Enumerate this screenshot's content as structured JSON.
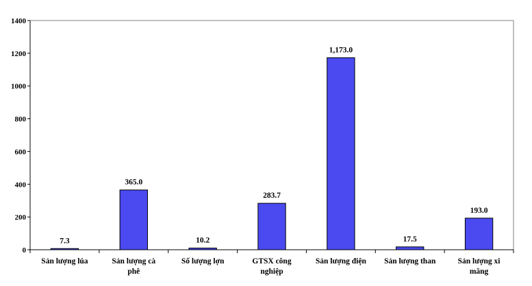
{
  "chart_data": {
    "type": "bar",
    "categories": [
      [
        "Sản lượng lúa"
      ],
      [
        "Sản lượng cà",
        "phê"
      ],
      [
        "Số lượng lợn"
      ],
      [
        "GTSX  công",
        "nghiệp"
      ],
      [
        "Sản lượng điện"
      ],
      [
        "Sản lượng than"
      ],
      [
        "Sản lượng xi",
        "măng"
      ]
    ],
    "values": [
      7.3,
      365.0,
      10.2,
      283.7,
      1173.0,
      17.5,
      193.0
    ],
    "data_labels": [
      "7.3",
      "365.0",
      "10.2",
      "283.7",
      "1,173.0",
      "17.5",
      "193.0"
    ],
    "ylim": [
      0,
      1400
    ],
    "yticks": [
      0,
      200,
      400,
      600,
      800,
      1000,
      1200,
      1400
    ],
    "bar_color": "#4a4af0",
    "bar_edge_color": "#000000",
    "grid": false,
    "legend": "none"
  }
}
